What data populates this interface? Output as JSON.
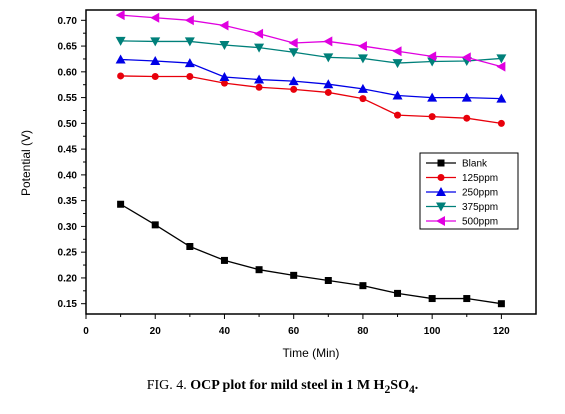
{
  "chart_data": {
    "type": "line",
    "xlabel": "Time (Min)",
    "ylabel": "Potential (V)",
    "xlim": [
      0,
      130
    ],
    "ylim": [
      0.13,
      0.72
    ],
    "xticks": [
      "0",
      "20",
      "40",
      "60",
      "80",
      "100",
      "120"
    ],
    "yticks": [
      "0.15",
      "0.20",
      "0.25",
      "0.30",
      "0.35",
      "0.40",
      "0.45",
      "0.50",
      "0.55",
      "0.60",
      "0.65",
      "0.70"
    ],
    "legend_position": "center-right",
    "x": [
      10,
      20,
      30,
      40,
      50,
      60,
      70,
      80,
      90,
      100,
      110,
      120
    ],
    "series": [
      {
        "name": "Blank",
        "color": "#000000",
        "marker": "square",
        "values": [
          0.343,
          0.303,
          0.261,
          0.234,
          0.216,
          0.205,
          0.195,
          0.185,
          0.17,
          0.16,
          0.16,
          0.15
        ]
      },
      {
        "name": "125ppm",
        "color": "#e8000b",
        "marker": "circle",
        "values": [
          0.592,
          0.591,
          0.591,
          0.578,
          0.57,
          0.566,
          0.56,
          0.548,
          0.516,
          0.513,
          0.51,
          0.5
        ]
      },
      {
        "name": "250ppm",
        "color": "#0000e6",
        "marker": "triangle-up",
        "values": [
          0.624,
          0.621,
          0.617,
          0.59,
          0.585,
          0.582,
          0.576,
          0.567,
          0.554,
          0.55,
          0.55,
          0.548
        ]
      },
      {
        "name": "375ppm",
        "color": "#00807a",
        "marker": "triangle-down",
        "values": [
          0.66,
          0.659,
          0.659,
          0.652,
          0.647,
          0.638,
          0.628,
          0.626,
          0.617,
          0.62,
          0.621,
          0.626
        ]
      },
      {
        "name": "500ppm",
        "color": "#e000e0",
        "marker": "triangle-left",
        "values": [
          0.71,
          0.705,
          0.7,
          0.69,
          0.674,
          0.656,
          0.659,
          0.65,
          0.64,
          0.63,
          0.628,
          0.61
        ]
      }
    ]
  },
  "caption": {
    "prefix": "FIG. 4.",
    "text_main": "OCP plot for mild steel in 1 M H",
    "sub1": "2",
    "text_mid": "SO",
    "sub2": "4",
    "suffix": "."
  }
}
